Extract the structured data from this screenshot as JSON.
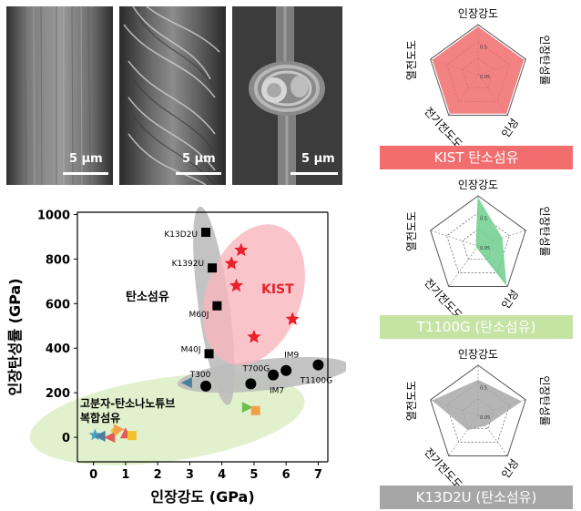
{
  "sem_images": [
    {
      "scale_label": "5 μm"
    },
    {
      "scale_label": "5 μm"
    },
    {
      "scale_label": "5 μm"
    }
  ],
  "chart_data": [
    {
      "type": "scatter",
      "xlabel": "인장강도 (GPa)",
      "ylabel": "인장탄성률 (GPa)",
      "xlim": [
        -0.5,
        7.3
      ],
      "ylim": [
        -110,
        1010
      ],
      "xticks": [
        0,
        1,
        2,
        3,
        4,
        5,
        6,
        7
      ],
      "yticks": [
        0,
        200,
        400,
        600,
        800,
        1000
      ],
      "grid": false,
      "regions": [
        {
          "name": "탄소섬유",
          "color": "#bdbdbd"
        },
        {
          "name": "KIST",
          "color": "#f7b7bd"
        },
        {
          "name": "고분자-탄소나노튜브 복합섬유",
          "color": "#dcefc4"
        }
      ],
      "annotations": [
        "탄소섬유",
        "KIST",
        "고분자-탄소나노튜브",
        "복합섬유"
      ],
      "series": [
        {
          "marker": "square",
          "color": "#000000",
          "points": [
            {
              "x": 3.5,
              "y": 920,
              "label": "K13D2U"
            },
            {
              "x": 3.7,
              "y": 760,
              "label": "K1392U"
            },
            {
              "x": 3.85,
              "y": 590,
              "label": "M60J"
            },
            {
              "x": 3.6,
              "y": 375,
              "label": "M40J"
            }
          ]
        },
        {
          "marker": "circle",
          "color": "#000000",
          "points": [
            {
              "x": 3.5,
              "y": 230,
              "label": "T300"
            },
            {
              "x": 4.9,
              "y": 240,
              "label": "T700G"
            },
            {
              "x": 5.6,
              "y": 280,
              "label": "IM7"
            },
            {
              "x": 6.0,
              "y": 300,
              "label": "IM9"
            },
            {
              "x": 7.0,
              "y": 325,
              "label": "T1100G"
            }
          ]
        },
        {
          "marker": "star",
          "color": "#e8212b",
          "points": [
            {
              "x": 4.6,
              "y": 840
            },
            {
              "x": 4.3,
              "y": 780
            },
            {
              "x": 4.45,
              "y": 680
            },
            {
              "x": 6.2,
              "y": 530
            },
            {
              "x": 5.0,
              "y": 450
            }
          ]
        },
        {
          "marker": "mixed",
          "color": "#6d9eeb",
          "points": [
            {
              "x": 2.9,
              "y": 245,
              "shape": "tri-left",
              "color": "#4a7f9e"
            },
            {
              "x": 4.8,
              "y": 135,
              "shape": "tri-right",
              "color": "#6dc04a"
            },
            {
              "x": 5.05,
              "y": 120,
              "shape": "square",
              "color": "#f0a04b"
            },
            {
              "x": 0.05,
              "y": 10,
              "shape": "star",
              "color": "#49a3c7"
            },
            {
              "x": 0.2,
              "y": 5,
              "shape": "tri-left",
              "color": "#4a7f9e"
            },
            {
              "x": 0.7,
              "y": 30,
              "shape": "diamond",
              "color": "#f2c12e"
            },
            {
              "x": 1.0,
              "y": 20,
              "shape": "tri-up",
              "color": "#e25a5a"
            },
            {
              "x": 1.2,
              "y": 8,
              "shape": "square",
              "color": "#f2c12e"
            },
            {
              "x": 0.5,
              "y": 0,
              "shape": "tri-left",
              "color": "#e25a5a"
            },
            {
              "x": 0.8,
              "y": 35,
              "shape": "tri-right",
              "color": "#f0a04b"
            }
          ]
        }
      ]
    },
    {
      "type": "radar",
      "axes": [
        "인장강도",
        "인장탄성률",
        "인성",
        "전기전도도",
        "열전도도"
      ],
      "ring_labels": [
        "0.5",
        "0.05"
      ],
      "values": [
        0.95,
        0.95,
        0.95,
        0.95,
        0.95
      ],
      "color": "#f26d6d",
      "caption": "KIST 탄소섬유"
    },
    {
      "type": "radar",
      "axes": [
        "인장강도",
        "인장탄성률",
        "인성",
        "전기전도도",
        "열전도도"
      ],
      "ring_labels": [
        "0.5",
        "0.05"
      ],
      "values": [
        0.95,
        0.5,
        0.95,
        0.02,
        0.02
      ],
      "color": "#6fcf8e",
      "caption": "T1100G (탄소섬유)"
    },
    {
      "type": "radar",
      "axes": [
        "인장강도",
        "인장탄성률",
        "인성",
        "전기전도도",
        "열전도도"
      ],
      "ring_labels": [
        "0.5",
        "0.05"
      ],
      "values": [
        0.7,
        0.9,
        0.25,
        0.35,
        0.95
      ],
      "color": "#a9a9a9",
      "caption": "K13D2U (탄소섬유)"
    }
  ],
  "captions": {
    "kist": {
      "text": "KIST 탄소섬유",
      "bg": "#f26d6d",
      "fg": "#ffffff"
    },
    "t1100g": {
      "text": "T1100G (탄소섬유)",
      "bg": "#c5e3a3",
      "fg": "#ffffff"
    },
    "k13d2u": {
      "text": "K13D2U (탄소섬유)",
      "bg": "#a6a6a6",
      "fg": "#ffffff"
    }
  }
}
